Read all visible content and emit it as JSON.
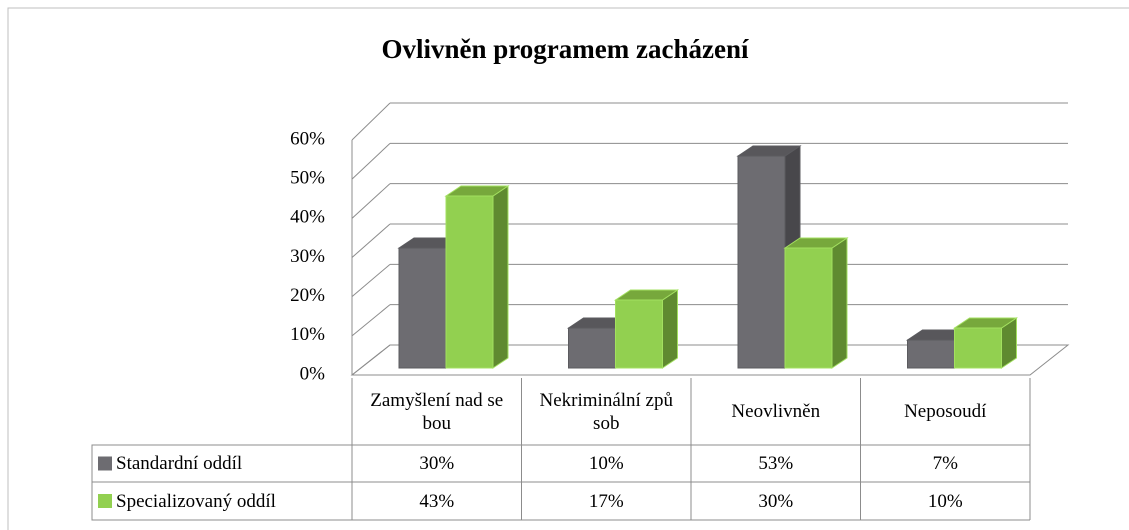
{
  "chart_data": {
    "type": "bar3d",
    "title": "Ovlivněn programem zacházení",
    "categories": [
      "Zamyšlení nad sebou",
      "Nekriminální způsob",
      "Neovlivněn",
      "Neposoudí"
    ],
    "series": [
      {
        "name": "Standardní oddíl",
        "color": "#6d6c71",
        "values": [
          30,
          10,
          53,
          7
        ],
        "value_labels": [
          "30%",
          "10%",
          "53%",
          "7%"
        ]
      },
      {
        "name": "Specializovaný oddíl",
        "color": "#92d050",
        "values": [
          43,
          17,
          30,
          10
        ],
        "value_labels": [
          "43%",
          "17%",
          "30%",
          "10%"
        ]
      }
    ],
    "ylim": [
      0,
      60
    ],
    "yticks": [
      {
        "value": 0,
        "label": "0%"
      },
      {
        "value": 10,
        "label": "10%"
      },
      {
        "value": 20,
        "label": "20%"
      },
      {
        "value": 30,
        "label": "30%"
      },
      {
        "value": 40,
        "label": "40%"
      },
      {
        "value": 50,
        "label": "50%"
      },
      {
        "value": 60,
        "label": "60%"
      }
    ],
    "grid": true
  }
}
